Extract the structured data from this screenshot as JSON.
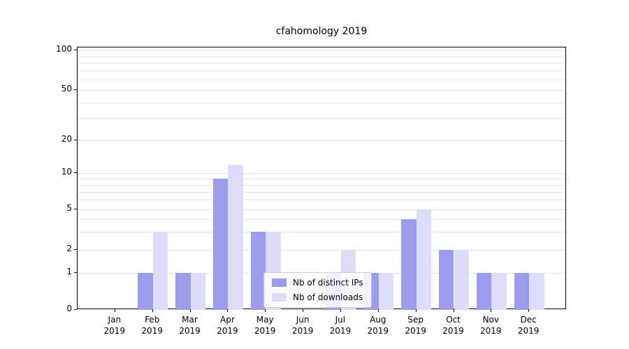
{
  "chart_data": {
    "type": "bar",
    "title": "cfahomology 2019",
    "x_categories_month": [
      "Jan",
      "Feb",
      "Mar",
      "Apr",
      "May",
      "Jun",
      "Jul",
      "Aug",
      "Sep",
      "Oct",
      "Nov",
      "Dec"
    ],
    "x_year": "2019",
    "series": [
      {
        "name": "Nb of distinct IPs",
        "color": "#9c9cee",
        "values": [
          0,
          1,
          1,
          9,
          3,
          0,
          1,
          1,
          4,
          2,
          1,
          1
        ]
      },
      {
        "name": "Nb of downloads",
        "color": "#dcdcf8",
        "values": [
          0,
          3,
          1,
          12,
          3,
          0,
          2,
          1,
          5,
          2,
          1,
          1
        ]
      }
    ],
    "yticks": [
      0,
      1,
      2,
      5,
      10,
      20,
      50,
      100
    ],
    "ylim": [
      0,
      100
    ],
    "yscale": "symlog",
    "grid": true,
    "legend_position": "lower center",
    "gridline_color": "#e3e3e3",
    "axis_color": "#000000"
  }
}
